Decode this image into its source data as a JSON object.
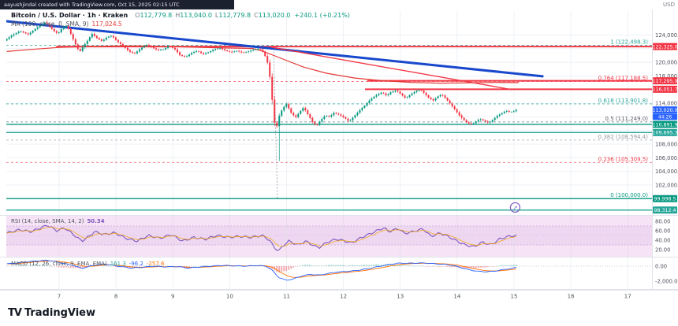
{
  "header": {
    "bar_text": "aayushjindal created with TradingView.com, Oct 15, 2025 02:15 UTC",
    "currency_label": "USD"
  },
  "legend": {
    "symbol": "Bitcoin / U.S. Dollar · 1h · Kraken",
    "o_label": "O",
    "o": "112,779.8",
    "h_label": "H",
    "h": "113,040.0",
    "l_label": "L",
    "l": "112,779.8",
    "c_label": "C",
    "c": "113,020.0",
    "change": "+240.1 (+0.21%)",
    "ma_label": "MA (100, close, 0, SMA, 9)",
    "ma_value": "117,024.5"
  },
  "rsi_legend": {
    "label": "RSI (14, close, SMA, 14, 2)",
    "value": "50.34"
  },
  "macd_legend": {
    "label": "MACD (12, 26, close, 9, EMA, EMA)",
    "values": [
      "161.3",
      "-96.2",
      "-257.6"
    ]
  },
  "footer": {
    "logo_tv": "TV",
    "logo_text": "TradingView"
  },
  "chart_data": {
    "type": "candlestick",
    "title": "Bitcoin / U.S. Dollar 1h Kraken",
    "x_axis": {
      "unit": "day of Oct 2025",
      "labels": [
        "7",
        "8",
        "9",
        "10",
        "11",
        "12",
        "13",
        "14",
        "15",
        "16",
        "17"
      ],
      "first_day": 7
    },
    "price_axis": {
      "ticks": [
        {
          "label": "124,000.0",
          "value": 124000
        },
        {
          "label": "120,000.0",
          "value": 120000
        },
        {
          "label": "118,000.0",
          "value": 118000
        },
        {
          "label": "114,000.0",
          "value": 114000
        },
        {
          "label": "108,000.0",
          "value": 108000
        },
        {
          "label": "106,000.0",
          "value": 106000
        },
        {
          "label": "104,000.0",
          "value": 104000
        },
        {
          "label": "102,000.0",
          "value": 102000
        }
      ],
      "grid": [
        124000,
        122000,
        120000,
        118000,
        116000,
        114000,
        112000,
        110000,
        108000,
        106000,
        104000,
        102000,
        100000
      ]
    },
    "price_chips": [
      {
        "label": "122,325.0",
        "price": 122325.0,
        "color": "#f23645"
      },
      {
        "label": "117,295.9",
        "price": 117295.9,
        "color": "#f23645"
      },
      {
        "label": "116,051.7",
        "price": 116051.7,
        "color": "#f23645"
      },
      {
        "label": "113,020.0",
        "price": 113020.0,
        "color": "#2962ff",
        "countdown": "44:26"
      },
      {
        "label": "110,891.9",
        "price": 110891.9,
        "color": "#089981"
      },
      {
        "label": "109,695.3",
        "price": 109695.3,
        "color": "#26a69a"
      },
      {
        "label": "99,998.5",
        "price": 99998.5,
        "color": "#089981"
      },
      {
        "label": "98,312.4",
        "price": 98312.4,
        "color": "#26a69a"
      }
    ],
    "horizontal_lines": [
      {
        "price": 122325.0,
        "color": "#f23645",
        "width": 2,
        "from_day": 6.95
      },
      {
        "price": 117295.9,
        "color": "#f23645",
        "width": 2,
        "from_day": 12.42
      },
      {
        "price": 116051.7,
        "color": "#f23645",
        "width": 2,
        "from_day": 12.38
      },
      {
        "price": 110891.9,
        "color": "#089981",
        "width": 1.4,
        "from_day": null
      },
      {
        "price": 109695.3,
        "color": "#26a69a",
        "width": 1.4,
        "from_day": null
      },
      {
        "price": 99998.5,
        "color": "#089981",
        "width": 1.4,
        "from_day": null
      },
      {
        "price": 98312.4,
        "color": "#26a69a",
        "width": 1.4,
        "from_day": null
      }
    ],
    "trendlines": [
      {
        "from": [
          6.08,
          126034
        ],
        "to": [
          15.5,
          117950
        ],
        "color": "#1848cc",
        "width": 3
      },
      {
        "from": [
          10.74,
          122218
        ],
        "to": [
          14.9,
          116090
        ],
        "color": "#f23645",
        "width": 1.4
      }
    ],
    "fib": {
      "connector": {
        "from": [
          10.77,
          122498.3
        ],
        "to": [
          10.84,
          100000.0
        ]
      },
      "levels": [
        {
          "text": "1 (122,498.3)",
          "price": 122498.3,
          "color": "#26a69a"
        },
        {
          "text": "0.764 (117,188.5)",
          "price": 117188.5,
          "color": "#f23645"
        },
        {
          "text": "0.618 (113,901.8)",
          "price": 113901.8,
          "color": "#26a69a"
        },
        {
          "text": "0.5 (111,249.0)",
          "price": 111249.0,
          "color": "#5b5e66"
        },
        {
          "text": "0.382 (108,594.4)",
          "price": 108594.4,
          "color": "#9598a1"
        },
        {
          "text": "0.236 (105,309.5)",
          "price": 105309.5,
          "color": "#f23645"
        },
        {
          "text": "0 (100,000.0)",
          "price": 100000.0,
          "color": "#089981"
        }
      ]
    },
    "price_path": [
      [
        6.08,
        123200
      ],
      [
        6.2,
        123900
      ],
      [
        6.35,
        124600
      ],
      [
        6.5,
        124100
      ],
      [
        6.62,
        124900
      ],
      [
        6.72,
        125500
      ],
      [
        6.8,
        125900
      ],
      [
        6.88,
        125200
      ],
      [
        6.95,
        124600
      ],
      [
        7.02,
        124200
      ],
      [
        7.1,
        125100
      ],
      [
        7.18,
        125400
      ],
      [
        7.25,
        124100
      ],
      [
        7.32,
        122800
      ],
      [
        7.4,
        121500
      ],
      [
        7.47,
        122400
      ],
      [
        7.55,
        123300
      ],
      [
        7.62,
        124200
      ],
      [
        7.7,
        123600
      ],
      [
        7.8,
        123100
      ],
      [
        7.88,
        123700
      ],
      [
        7.97,
        123900
      ],
      [
        8.07,
        123000
      ],
      [
        8.17,
        122400
      ],
      [
        8.27,
        121600
      ],
      [
        8.37,
        121300
      ],
      [
        8.47,
        122000
      ],
      [
        8.57,
        122600
      ],
      [
        8.67,
        122200
      ],
      [
        8.77,
        121800
      ],
      [
        8.87,
        121900
      ],
      [
        8.97,
        122400
      ],
      [
        9.07,
        122000
      ],
      [
        9.17,
        121000
      ],
      [
        9.27,
        120800
      ],
      [
        9.37,
        121400
      ],
      [
        9.47,
        121700
      ],
      [
        9.57,
        121200
      ],
      [
        9.67,
        121500
      ],
      [
        9.77,
        121900
      ],
      [
        9.87,
        122100
      ],
      [
        9.97,
        121700
      ],
      [
        10.07,
        121500
      ],
      [
        10.17,
        121700
      ],
      [
        10.27,
        121400
      ],
      [
        10.37,
        121600
      ],
      [
        10.47,
        121900
      ],
      [
        10.57,
        122000
      ],
      [
        10.64,
        121400
      ],
      [
        10.7,
        120200
      ],
      [
        10.74,
        118400
      ],
      [
        10.78,
        115300
      ],
      [
        10.82,
        111500
      ],
      [
        10.86,
        110100
      ],
      [
        10.9,
        111900
      ],
      [
        10.97,
        113200
      ],
      [
        11.04,
        113900
      ],
      [
        11.12,
        112600
      ],
      [
        11.2,
        111900
      ],
      [
        11.27,
        112700
      ],
      [
        11.34,
        113400
      ],
      [
        11.42,
        112300
      ],
      [
        11.5,
        111200
      ],
      [
        11.57,
        110700
      ],
      [
        11.64,
        111500
      ],
      [
        11.72,
        112200
      ],
      [
        11.8,
        112000
      ],
      [
        11.87,
        112600
      ],
      [
        11.97,
        112300
      ],
      [
        12.07,
        111800
      ],
      [
        12.14,
        111300
      ],
      [
        12.22,
        112000
      ],
      [
        12.32,
        112900
      ],
      [
        12.42,
        113700
      ],
      [
        12.52,
        114600
      ],
      [
        12.62,
        115200
      ],
      [
        12.72,
        115600
      ],
      [
        12.8,
        115100
      ],
      [
        12.87,
        115600
      ],
      [
        12.97,
        115900
      ],
      [
        13.07,
        115200
      ],
      [
        13.14,
        114700
      ],
      [
        13.22,
        115300
      ],
      [
        13.32,
        115800
      ],
      [
        13.4,
        116000
      ],
      [
        13.47,
        115400
      ],
      [
        13.54,
        114800
      ],
      [
        13.62,
        114400
      ],
      [
        13.7,
        115000
      ],
      [
        13.77,
        115300
      ],
      [
        13.84,
        114700
      ],
      [
        13.92,
        113900
      ],
      [
        14.0,
        113100
      ],
      [
        14.07,
        112300
      ],
      [
        14.14,
        111700
      ],
      [
        14.22,
        111100
      ],
      [
        14.3,
        110900
      ],
      [
        14.37,
        111300
      ],
      [
        14.44,
        111700
      ],
      [
        14.52,
        111400
      ],
      [
        14.6,
        111100
      ],
      [
        14.67,
        111600
      ],
      [
        14.74,
        112100
      ],
      [
        14.82,
        112500
      ],
      [
        14.9,
        112900
      ],
      [
        14.97,
        112700
      ],
      [
        15.03,
        112800
      ],
      [
        15.08,
        113020
      ]
    ],
    "wick_high_overrides": [
      [
        6.8,
        126200
      ]
    ],
    "wick_low_overrides": [
      [
        10.86,
        105500
      ]
    ],
    "ma100_path": [
      [
        6.08,
        121600
      ],
      [
        6.5,
        121900
      ],
      [
        7.0,
        122200
      ],
      [
        7.5,
        122300
      ],
      [
        8.0,
        122400
      ],
      [
        8.5,
        122400
      ],
      [
        9.0,
        122300
      ],
      [
        9.5,
        122200
      ],
      [
        10.0,
        122100
      ],
      [
        10.4,
        122050
      ],
      [
        10.6,
        121600
      ],
      [
        10.9,
        120600
      ],
      [
        11.3,
        119300
      ],
      [
        11.7,
        118400
      ],
      [
        12.2,
        117700
      ],
      [
        12.7,
        117300
      ],
      [
        13.2,
        117050
      ],
      [
        13.7,
        116950
      ],
      [
        14.2,
        117000
      ],
      [
        14.7,
        117050
      ],
      [
        15.08,
        117024.5
      ]
    ],
    "annotation_circle": {
      "day": 15.02,
      "price": 98700,
      "color": "#7e57c2"
    },
    "rsi": {
      "value": 50.34,
      "bands": [
        70,
        30
      ],
      "mid": 50,
      "axis_ticks": [
        {
          "label": "80.00",
          "value": 80
        },
        {
          "label": "60.00",
          "value": 60
        },
        {
          "label": "40.00",
          "value": 40
        },
        {
          "label": "20.00",
          "value": 20
        }
      ],
      "series": [
        [
          6.08,
          55
        ],
        [
          6.3,
          62
        ],
        [
          6.5,
          58
        ],
        [
          6.72,
          68
        ],
        [
          6.8,
          72
        ],
        [
          6.95,
          60
        ],
        [
          7.1,
          66
        ],
        [
          7.25,
          52
        ],
        [
          7.4,
          38
        ],
        [
          7.55,
          50
        ],
        [
          7.62,
          58
        ],
        [
          7.8,
          52
        ],
        [
          7.97,
          56
        ],
        [
          8.17,
          44
        ],
        [
          8.37,
          38
        ],
        [
          8.57,
          50
        ],
        [
          8.77,
          44
        ],
        [
          8.97,
          52
        ],
        [
          9.17,
          38
        ],
        [
          9.37,
          46
        ],
        [
          9.57,
          42
        ],
        [
          9.77,
          50
        ],
        [
          9.97,
          46
        ],
        [
          10.17,
          48
        ],
        [
          10.37,
          46
        ],
        [
          10.57,
          50
        ],
        [
          10.7,
          40
        ],
        [
          10.78,
          25
        ],
        [
          10.86,
          17
        ],
        [
          10.97,
          32
        ],
        [
          11.04,
          38
        ],
        [
          11.2,
          30
        ],
        [
          11.34,
          38
        ],
        [
          11.5,
          27
        ],
        [
          11.57,
          24
        ],
        [
          11.72,
          36
        ],
        [
          11.87,
          42
        ],
        [
          11.97,
          40
        ],
        [
          12.14,
          34
        ],
        [
          12.32,
          46
        ],
        [
          12.52,
          56
        ],
        [
          12.62,
          62
        ],
        [
          12.72,
          66
        ],
        [
          12.8,
          58
        ],
        [
          12.97,
          65
        ],
        [
          13.07,
          54
        ],
        [
          13.22,
          58
        ],
        [
          13.4,
          64
        ],
        [
          13.54,
          48
        ],
        [
          13.7,
          55
        ],
        [
          13.84,
          48
        ],
        [
          14.0,
          38
        ],
        [
          14.14,
          30
        ],
        [
          14.3,
          26
        ],
        [
          14.44,
          36
        ],
        [
          14.6,
          30
        ],
        [
          14.74,
          42
        ],
        [
          14.9,
          48
        ],
        [
          15.08,
          50.34
        ]
      ]
    },
    "macd": {
      "values": {
        "histogram": 161.3,
        "macd": -96.2,
        "signal": -257.6
      },
      "axis_ticks": [
        {
          "label": "0.00",
          "value": 0
        },
        {
          "label": "-2,000.0",
          "value": -2000
        }
      ],
      "line": [
        [
          6.08,
          300
        ],
        [
          6.35,
          500
        ],
        [
          6.6,
          700
        ],
        [
          6.8,
          800
        ],
        [
          7.0,
          500
        ],
        [
          7.25,
          100
        ],
        [
          7.4,
          -300
        ],
        [
          7.6,
          100
        ],
        [
          7.8,
          300
        ],
        [
          8.07,
          -50
        ],
        [
          8.27,
          -250
        ],
        [
          8.47,
          -150
        ],
        [
          8.67,
          0
        ],
        [
          8.87,
          -100
        ],
        [
          9.07,
          -50
        ],
        [
          9.27,
          -250
        ],
        [
          9.47,
          -100
        ],
        [
          9.67,
          0
        ],
        [
          9.87,
          100
        ],
        [
          10.07,
          50
        ],
        [
          10.27,
          0
        ],
        [
          10.47,
          100
        ],
        [
          10.64,
          0
        ],
        [
          10.74,
          -500
        ],
        [
          10.86,
          -1500
        ],
        [
          11.0,
          -1900
        ],
        [
          11.12,
          -1700
        ],
        [
          11.27,
          -1300
        ],
        [
          11.42,
          -1100
        ],
        [
          11.57,
          -1200
        ],
        [
          11.72,
          -1000
        ],
        [
          11.87,
          -800
        ],
        [
          12.07,
          -700
        ],
        [
          12.22,
          -600
        ],
        [
          12.42,
          -350
        ],
        [
          12.62,
          -50
        ],
        [
          12.82,
          250
        ],
        [
          12.97,
          400
        ],
        [
          13.14,
          380
        ],
        [
          13.32,
          420
        ],
        [
          13.47,
          400
        ],
        [
          13.62,
          300
        ],
        [
          13.77,
          250
        ],
        [
          13.92,
          100
        ],
        [
          14.07,
          -200
        ],
        [
          14.22,
          -500
        ],
        [
          14.37,
          -700
        ],
        [
          14.52,
          -750
        ],
        [
          14.67,
          -650
        ],
        [
          14.82,
          -450
        ],
        [
          14.97,
          -300
        ],
        [
          15.08,
          -96.2
        ]
      ]
    },
    "colors": {
      "up": "#089981",
      "down": "#f23645",
      "ma": "#e53935",
      "trend_blue": "#1848cc",
      "rsi_line": "#7e57c2",
      "rsi_ma": "#f0a500",
      "rsi_bg": "#f6e4f6",
      "rsi_band": "#eed7f1",
      "macd_line": "#2962ff",
      "signal_line": "#ff6d00",
      "hist_pos": "#9dd4cd",
      "hist_neg": "#f2a8ad",
      "grid": "#eef1f6",
      "axis_text": "#50535e",
      "separator": "#e0e3eb",
      "current": "#2962ff"
    }
  }
}
